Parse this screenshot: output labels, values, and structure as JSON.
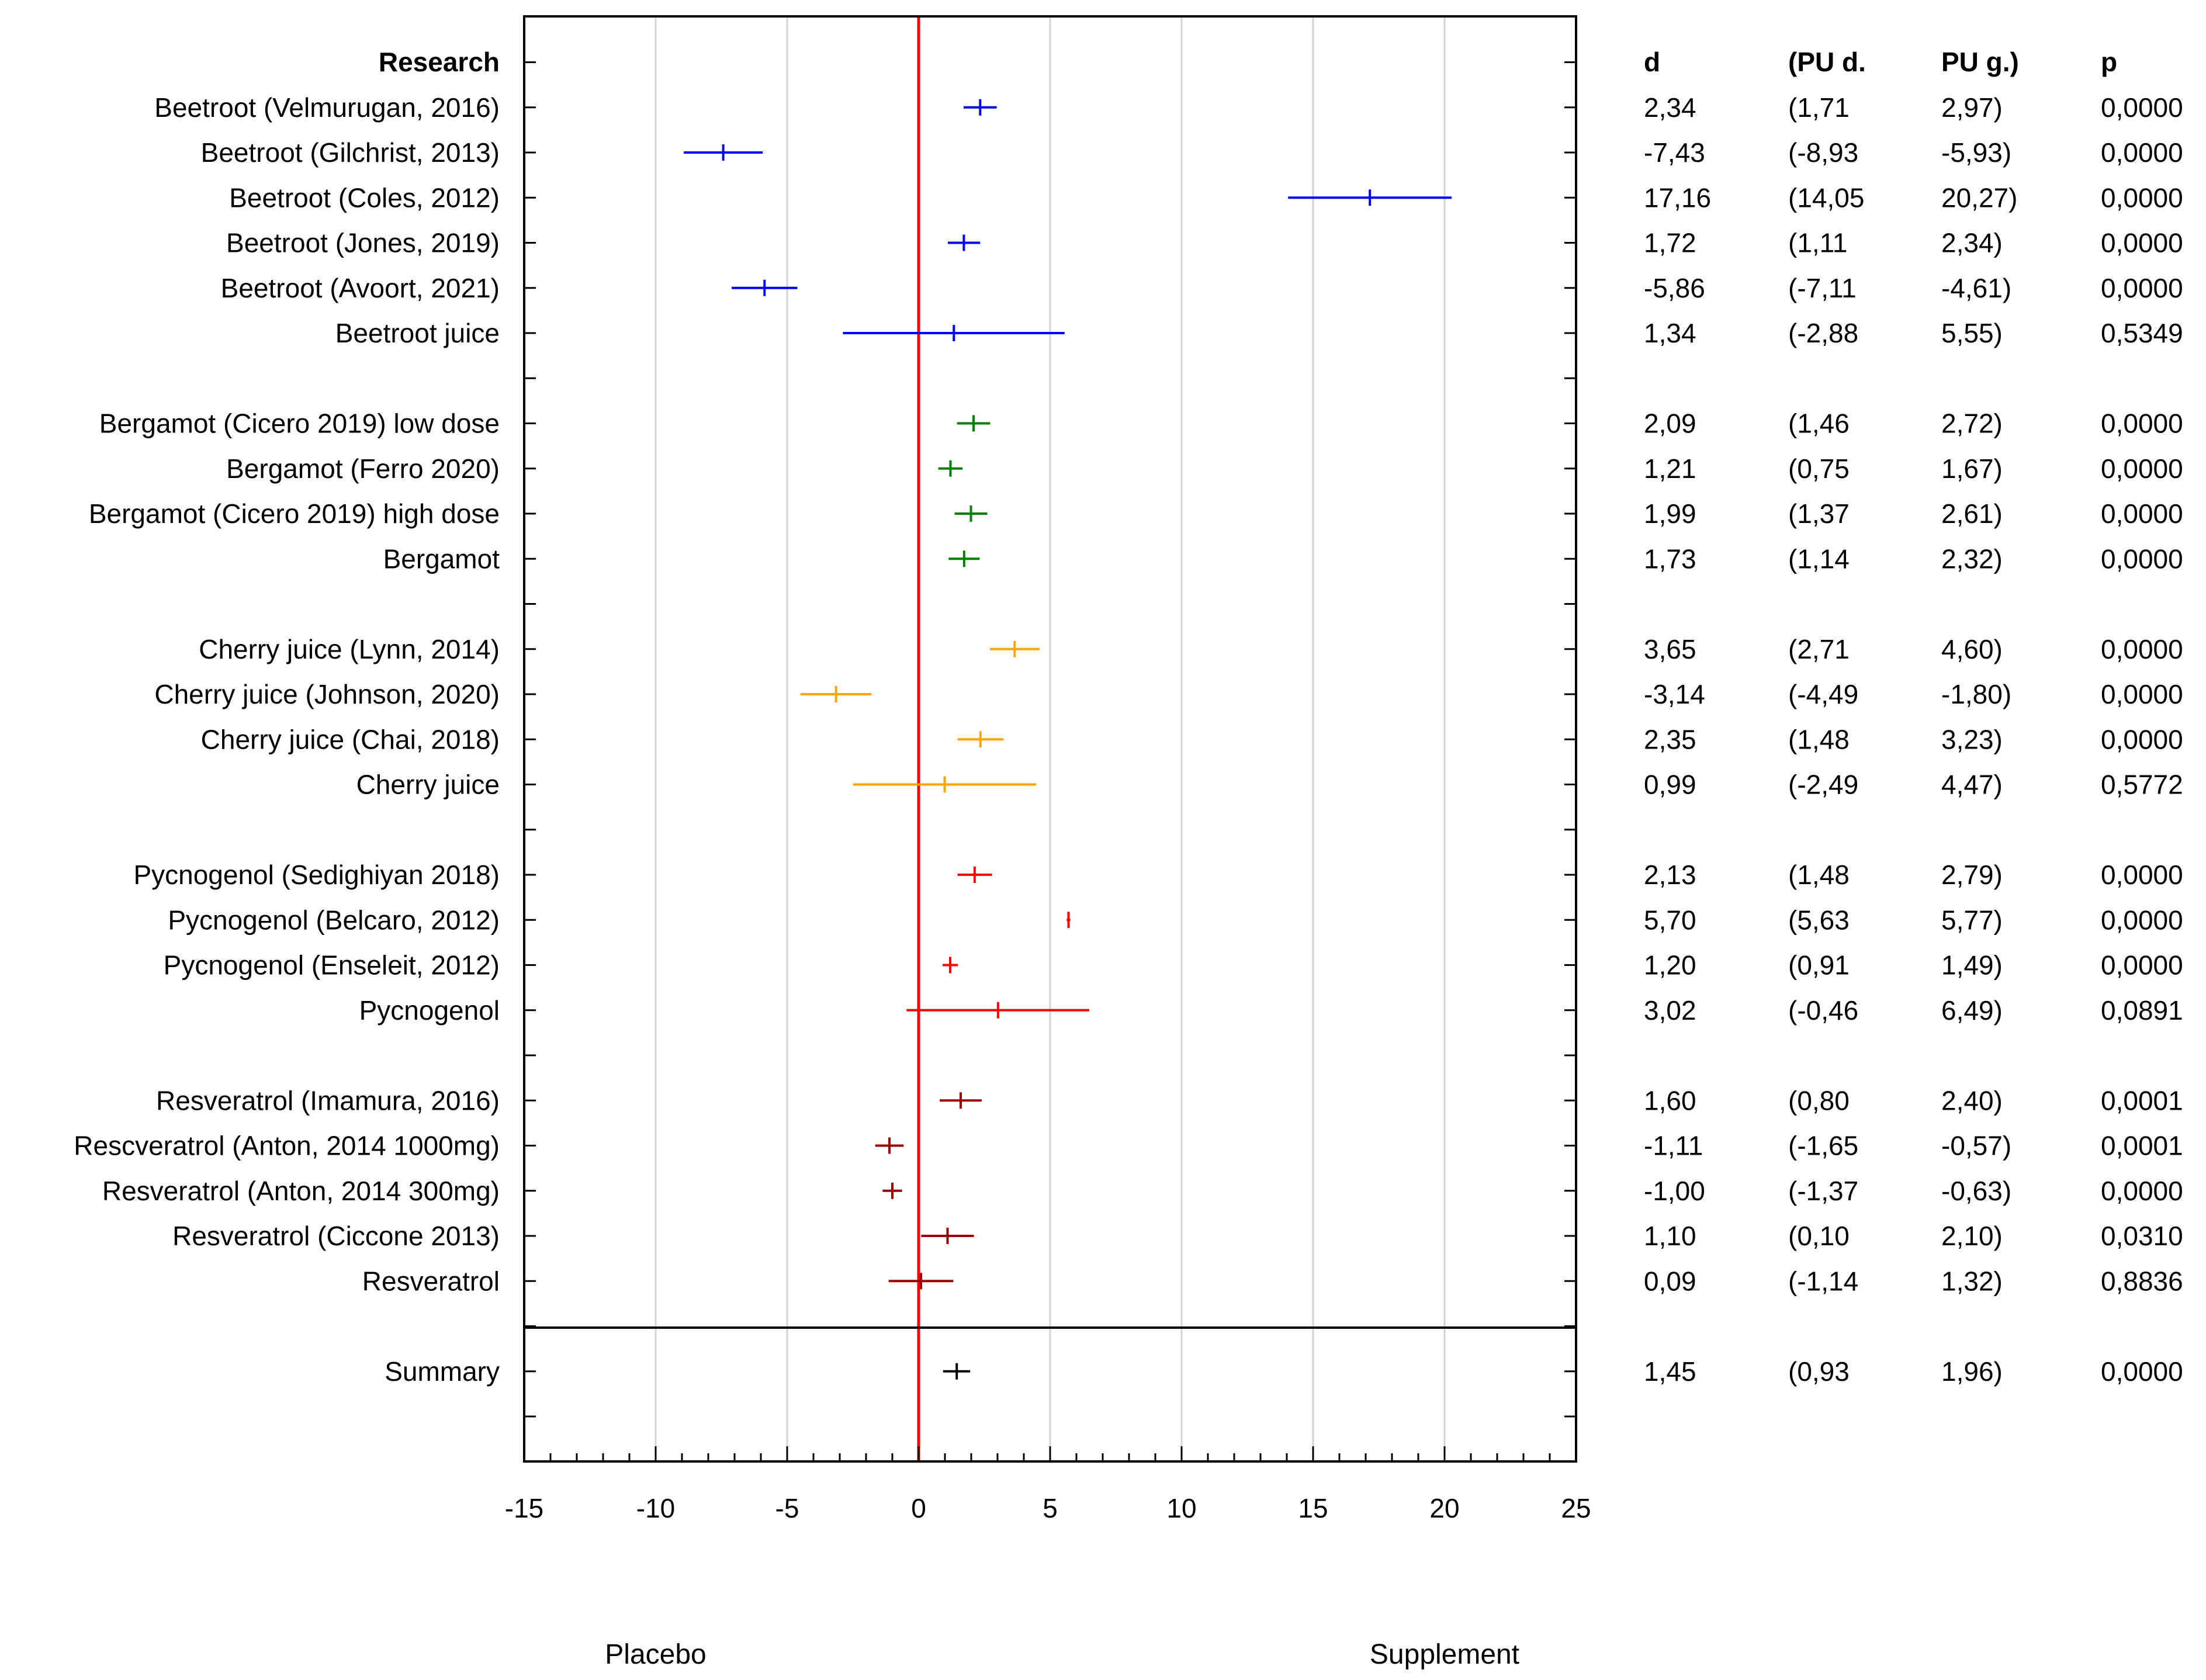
{
  "chart_data": {
    "type": "forest",
    "x_min": -15,
    "x_max": 25,
    "x_ticks": [
      "-15",
      "-10",
      "-5",
      "0",
      "5",
      "10",
      "15",
      "20",
      "25"
    ],
    "reference_value": 0,
    "header": {
      "label": "Research",
      "cols": [
        "d",
        "(PU d.",
        "PU g.)",
        "p"
      ]
    },
    "bottom_labels": {
      "left": "Placebo",
      "right": "Supplement"
    },
    "colors": {
      "beetroot": "#0000ff",
      "bergamot": "#008000",
      "cherry": "#ffa500",
      "pycnogenol": "#ff0000",
      "resveratrol": "#990000",
      "summary": "#000000",
      "zero_line": "#ff0000",
      "grid": "#d3d3d3"
    },
    "rows": [
      {
        "label": "Beetroot (Velmurugan, 2016)",
        "d": 2.34,
        "lo": 1.71,
        "hi": 2.97,
        "d_text": "2,34",
        "lo_text": "(1,71",
        "hi_text": "2,97)",
        "p_text": "0,0000",
        "color": "#0000ff"
      },
      {
        "label": "Beetroot (Gilchrist, 2013)",
        "d": -7.43,
        "lo": -8.93,
        "hi": -5.93,
        "d_text": "-7,43",
        "lo_text": "(-8,93",
        "hi_text": "-5,93)",
        "p_text": "0,0000",
        "color": "#0000ff"
      },
      {
        "label": "Beetroot (Coles, 2012)",
        "d": 17.16,
        "lo": 14.05,
        "hi": 20.27,
        "d_text": "17,16",
        "lo_text": "(14,05",
        "hi_text": "20,27)",
        "p_text": "0,0000",
        "color": "#0000ff"
      },
      {
        "label": "Beetroot (Jones, 2019)",
        "d": 1.72,
        "lo": 1.11,
        "hi": 2.34,
        "d_text": "1,72",
        "lo_text": "(1,11",
        "hi_text": "2,34)",
        "p_text": "0,0000",
        "color": "#0000ff"
      },
      {
        "label": "Beetroot (Avoort, 2021)",
        "d": -5.86,
        "lo": -7.11,
        "hi": -4.61,
        "d_text": "-5,86",
        "lo_text": "(-7,11",
        "hi_text": "-4,61)",
        "p_text": "0,0000",
        "color": "#0000ff"
      },
      {
        "label": "Beetroot juice",
        "d": 1.34,
        "lo": -2.88,
        "hi": 5.55,
        "d_text": "1,34",
        "lo_text": "(-2,88",
        "hi_text": "5,55)",
        "p_text": "0,5349",
        "color": "#0000ff"
      },
      null,
      {
        "label": "Bergamot (Cicero 2019) low dose",
        "d": 2.09,
        "lo": 1.46,
        "hi": 2.72,
        "d_text": "2,09",
        "lo_text": "(1,46",
        "hi_text": "2,72)",
        "p_text": "0,0000",
        "color": "#008000"
      },
      {
        "label": "Bergamot (Ferro 2020)",
        "d": 1.21,
        "lo": 0.75,
        "hi": 1.67,
        "d_text": "1,21",
        "lo_text": "(0,75",
        "hi_text": "1,67)",
        "p_text": "0,0000",
        "color": "#008000"
      },
      {
        "label": "Bergamot (Cicero 2019) high dose",
        "d": 1.99,
        "lo": 1.37,
        "hi": 2.61,
        "d_text": "1,99",
        "lo_text": "(1,37",
        "hi_text": "2,61)",
        "p_text": "0,0000",
        "color": "#008000"
      },
      {
        "label": "Bergamot",
        "d": 1.73,
        "lo": 1.14,
        "hi": 2.32,
        "d_text": "1,73",
        "lo_text": "(1,14",
        "hi_text": "2,32)",
        "p_text": "0,0000",
        "color": "#008000"
      },
      null,
      {
        "label": "Cherry juice (Lynn, 2014)",
        "d": 3.65,
        "lo": 2.71,
        "hi": 4.6,
        "d_text": "3,65",
        "lo_text": "(2,71",
        "hi_text": "4,60)",
        "p_text": "0,0000",
        "color": "#ffa500"
      },
      {
        "label": "Cherry juice (Johnson, 2020)",
        "d": -3.14,
        "lo": -4.49,
        "hi": -1.8,
        "d_text": "-3,14",
        "lo_text": "(-4,49",
        "hi_text": "-1,80)",
        "p_text": "0,0000",
        "color": "#ffa500"
      },
      {
        "label": "Cherry juice (Chai, 2018)",
        "d": 2.35,
        "lo": 1.48,
        "hi": 3.23,
        "d_text": "2,35",
        "lo_text": "(1,48",
        "hi_text": "3,23)",
        "p_text": "0,0000",
        "color": "#ffa500"
      },
      {
        "label": "Cherry juice",
        "d": 0.99,
        "lo": -2.49,
        "hi": 4.47,
        "d_text": "0,99",
        "lo_text": "(-2,49",
        "hi_text": "4,47)",
        "p_text": "0,5772",
        "color": "#ffa500"
      },
      null,
      {
        "label": "Pycnogenol (Sedighiyan 2018)",
        "d": 2.13,
        "lo": 1.48,
        "hi": 2.79,
        "d_text": "2,13",
        "lo_text": "(1,48",
        "hi_text": "2,79)",
        "p_text": "0,0000",
        "color": "#ff0000"
      },
      {
        "label": "Pycnogenol (Belcaro, 2012)",
        "d": 5.7,
        "lo": 5.63,
        "hi": 5.77,
        "d_text": "5,70",
        "lo_text": "(5,63",
        "hi_text": "5,77)",
        "p_text": "0,0000",
        "color": "#ff0000"
      },
      {
        "label": "Pycnogenol (Enseleit, 2012)",
        "d": 1.2,
        "lo": 0.91,
        "hi": 1.49,
        "d_text": "1,20",
        "lo_text": "(0,91",
        "hi_text": "1,49)",
        "p_text": "0,0000",
        "color": "#ff0000"
      },
      {
        "label": "Pycnogenol",
        "d": 3.02,
        "lo": -0.46,
        "hi": 6.49,
        "d_text": "3,02",
        "lo_text": "(-0,46",
        "hi_text": "6,49)",
        "p_text": "0,0891",
        "color": "#ff0000"
      },
      null,
      {
        "label": "Resveratrol (Imamura, 2016)",
        "d": 1.6,
        "lo": 0.8,
        "hi": 2.4,
        "d_text": "1,60",
        "lo_text": "(0,80",
        "hi_text": "2,40)",
        "p_text": "0,0001",
        "color": "#990000"
      },
      {
        "label": "Rescveratrol (Anton, 2014 1000mg)",
        "d": -1.11,
        "lo": -1.65,
        "hi": -0.57,
        "d_text": "-1,11",
        "lo_text": "(-1,65",
        "hi_text": "-0,57)",
        "p_text": "0,0001",
        "color": "#990000"
      },
      {
        "label": "Resveratrol (Anton, 2014 300mg)",
        "d": -1.0,
        "lo": -1.37,
        "hi": -0.63,
        "d_text": "-1,00",
        "lo_text": "(-1,37",
        "hi_text": "-0,63)",
        "p_text": "0,0000",
        "color": "#990000"
      },
      {
        "label": "Resveratrol (Ciccone 2013)",
        "d": 1.1,
        "lo": 0.1,
        "hi": 2.1,
        "d_text": "1,10",
        "lo_text": "(0,10",
        "hi_text": "2,10)",
        "p_text": "0,0310",
        "color": "#990000"
      },
      {
        "label": "Resveratrol",
        "d": 0.09,
        "lo": -1.14,
        "hi": 1.32,
        "d_text": "0,09",
        "lo_text": "(-1,14",
        "hi_text": "1,32)",
        "p_text": "0,8836",
        "color": "#990000"
      },
      null,
      {
        "label": "Summary",
        "d": 1.45,
        "lo": 0.93,
        "hi": 1.96,
        "d_text": "1,45",
        "lo_text": "(0,93",
        "hi_text": "1,96)",
        "p_text": "0,0000",
        "color": "#000000"
      },
      null
    ]
  }
}
